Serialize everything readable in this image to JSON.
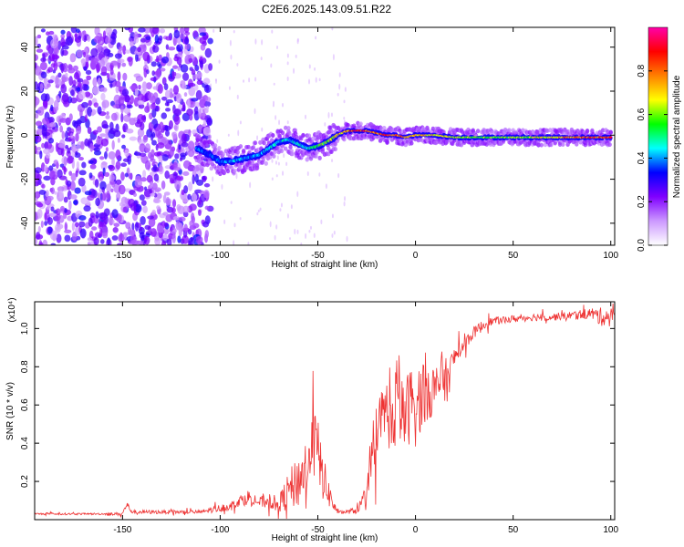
{
  "title": "C2E6.2025.143.09.51.R22",
  "chart_data": [
    {
      "type": "heatmap",
      "xlabel": "Height of straight line (km)",
      "ylabel": "Frequency (Hz)",
      "xlim": [
        -195,
        102
      ],
      "ylim": [
        -50,
        49
      ],
      "xticks": [
        -150,
        -100,
        -50,
        0,
        50,
        100
      ],
      "yticks": [
        -40,
        -20,
        0,
        20,
        40
      ],
      "colorbar": {
        "label": "Normalized spectral amplitude",
        "range": [
          0,
          1
        ],
        "ticks": [
          "0.0",
          "0.2",
          "0.4",
          "0.6",
          "0.8"
        ],
        "colors": [
          "#ffffff",
          "#cc99ff",
          "#8000ff",
          "#0000ff",
          "#00ffff",
          "#00ff00",
          "#ffff00",
          "#ff8000",
          "#ff0000",
          "#ff00aa"
        ]
      },
      "ridge": {
        "x": [
          -112,
          -105,
          -100,
          -95,
          -90,
          -85,
          -80,
          -75,
          -70,
          -65,
          -60,
          -55,
          -50,
          -45,
          -40,
          -35,
          -30,
          -25,
          -20,
          -15,
          -10,
          -5,
          0,
          10,
          20,
          30,
          40,
          50,
          60,
          70,
          80,
          90,
          100
        ],
        "y": [
          -6,
          -9,
          -12,
          -12,
          -11,
          -10,
          -9,
          -6,
          -3,
          -2,
          -4,
          -6,
          -5,
          -3,
          0,
          2,
          2,
          2,
          1,
          0,
          0,
          -1,
          0,
          0,
          -1,
          -1,
          -1,
          -1,
          -1,
          -1,
          -1,
          -1,
          -1
        ],
        "amplitude": [
          0.4,
          0.35,
          0.4,
          0.4,
          0.45,
          0.4,
          0.4,
          0.45,
          0.45,
          0.45,
          0.45,
          0.5,
          0.55,
          0.6,
          0.7,
          0.8,
          0.9,
          0.85,
          0.8,
          0.9,
          0.85,
          0.8,
          0.75,
          0.7,
          0.65,
          0.6,
          0.6,
          0.6,
          0.65,
          0.7,
          0.8,
          0.85,
          0.85
        ]
      },
      "noise_region": [
        -195,
        -105
      ]
    },
    {
      "type": "line",
      "xlabel": "Height of straight line (km)",
      "ylabel": "SNR (10 * v/v)",
      "y_multiplier": "(x10⁴)",
      "xlim": [
        -195,
        102
      ],
      "ylim": [
        0,
        1.14
      ],
      "xticks": [
        -150,
        -100,
        -50,
        0,
        50,
        100
      ],
      "yticks": [
        0.2,
        0.4,
        0.6,
        0.8,
        1.0
      ],
      "ytick_labels": [
        "0.2",
        "0.4",
        "0.6",
        "0.8",
        "1.0"
      ],
      "color": "#ee3333",
      "series": [
        {
          "x": [
            -195,
            -180,
            -160,
            -150,
            -148,
            -145,
            -130,
            -110,
            -100,
            -95,
            -90,
            -85,
            -80,
            -75,
            -70,
            -65,
            -60,
            -55,
            -52,
            -50,
            -48,
            -45,
            -42,
            -40,
            -35,
            -30,
            -28,
            -25,
            -22,
            -20,
            -18,
            -15,
            -12,
            -10,
            -8,
            -5,
            -2,
            0,
            2,
            5,
            8,
            10,
            13,
            16,
            20,
            25,
            30,
            35,
            40,
            50,
            60,
            70,
            80,
            90,
            95,
            100,
            102
          ],
          "y": [
            0.03,
            0.03,
            0.03,
            0.03,
            0.08,
            0.04,
            0.04,
            0.04,
            0.06,
            0.07,
            0.1,
            0.12,
            0.09,
            0.1,
            0.08,
            0.15,
            0.2,
            0.3,
            0.4,
            0.35,
            0.25,
            0.15,
            0.08,
            0.04,
            0.04,
            0.05,
            0.08,
            0.15,
            0.28,
            0.38,
            0.5,
            0.6,
            0.45,
            0.68,
            0.55,
            0.55,
            0.62,
            0.6,
            0.62,
            0.7,
            0.68,
            0.65,
            0.75,
            0.72,
            0.85,
            0.92,
            0.98,
            1.02,
            1.04,
            1.05,
            1.06,
            1.06,
            1.07,
            1.08,
            1.06,
            1.07,
            1.07
          ],
          "jitter": [
            0.005,
            0.005,
            0.005,
            0.01,
            0.02,
            0.01,
            0.01,
            0.01,
            0.02,
            0.02,
            0.03,
            0.04,
            0.03,
            0.04,
            0.04,
            0.1,
            0.14,
            0.16,
            0.2,
            0.18,
            0.14,
            0.08,
            0.04,
            0.01,
            0.01,
            0.02,
            0.03,
            0.06,
            0.1,
            0.14,
            0.18,
            0.16,
            0.16,
            0.2,
            0.18,
            0.2,
            0.2,
            0.22,
            0.2,
            0.18,
            0.16,
            0.16,
            0.14,
            0.12,
            0.06,
            0.04,
            0.03,
            0.03,
            0.02,
            0.02,
            0.02,
            0.02,
            0.02,
            0.03,
            0.05,
            0.04,
            0.03
          ]
        }
      ]
    }
  ]
}
